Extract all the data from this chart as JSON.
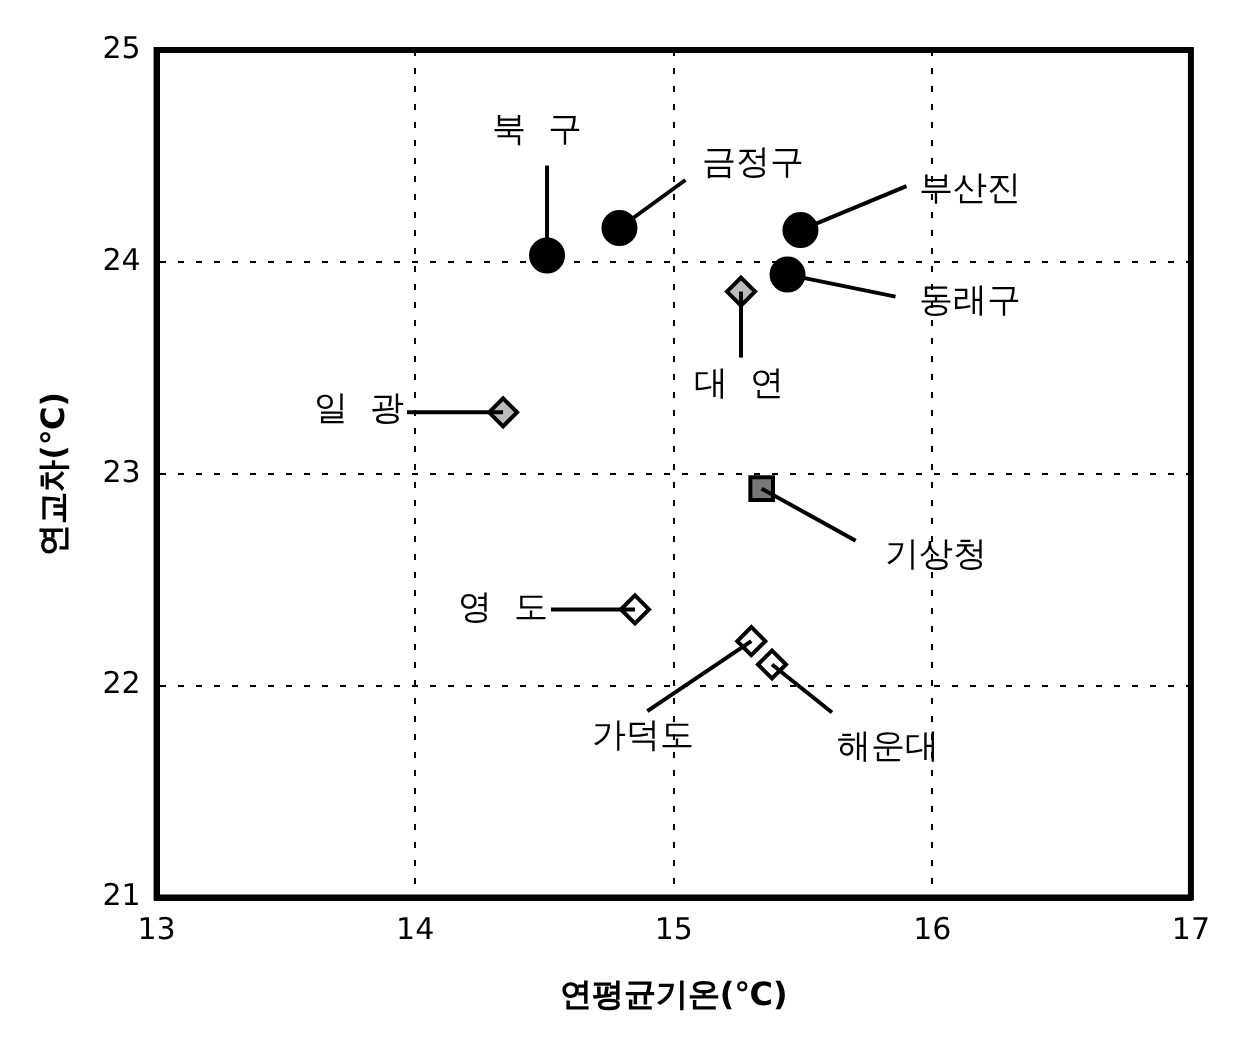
{
  "chart_data": {
    "type": "scatter",
    "xlabel": "연평균기온(℃)",
    "ylabel": "연교차(℃)",
    "xlim": [
      13,
      17
    ],
    "xticks": [
      13,
      14,
      15,
      16,
      17
    ],
    "ylim": [
      21,
      25
    ],
    "yticks": [
      21,
      22,
      23,
      24,
      25
    ],
    "grid": true,
    "legend": false,
    "series": [
      {
        "marker": "circle",
        "color": "#000000",
        "x": [
          14.51,
          14.79,
          15.49,
          15.44
        ],
        "values": [
          24.03,
          24.16,
          24.15,
          23.94
        ]
      },
      {
        "marker": "diamond",
        "color": "#bbbbbb",
        "x": [
          15.26,
          14.34
        ],
        "values": [
          23.86,
          23.29
        ]
      },
      {
        "marker": "square",
        "color": "#777777",
        "x": [
          15.34
        ],
        "values": [
          22.93
        ]
      },
      {
        "marker": "diamond",
        "color": "#ffffff",
        "x": [
          14.85,
          15.3,
          15.38
        ],
        "values": [
          22.36,
          22.21,
          22.1
        ]
      }
    ],
    "annotations": [
      {
        "text": "북  구",
        "x": 14.51,
        "y": 24.03
      },
      {
        "text": "금정구",
        "x": 14.79,
        "y": 24.16
      },
      {
        "text": "부산진",
        "x": 15.49,
        "y": 24.15
      },
      {
        "text": "동래구",
        "x": 15.44,
        "y": 23.94
      },
      {
        "text": "대  연",
        "x": 15.26,
        "y": 23.86
      },
      {
        "text": "일  광",
        "x": 14.34,
        "y": 23.29
      },
      {
        "text": "기상청",
        "x": 15.34,
        "y": 22.93
      },
      {
        "text": "영  도",
        "x": 14.85,
        "y": 22.36
      },
      {
        "text": "가덕도",
        "x": 15.3,
        "y": 22.21
      },
      {
        "text": "해운대",
        "x": 15.38,
        "y": 22.1
      }
    ]
  }
}
